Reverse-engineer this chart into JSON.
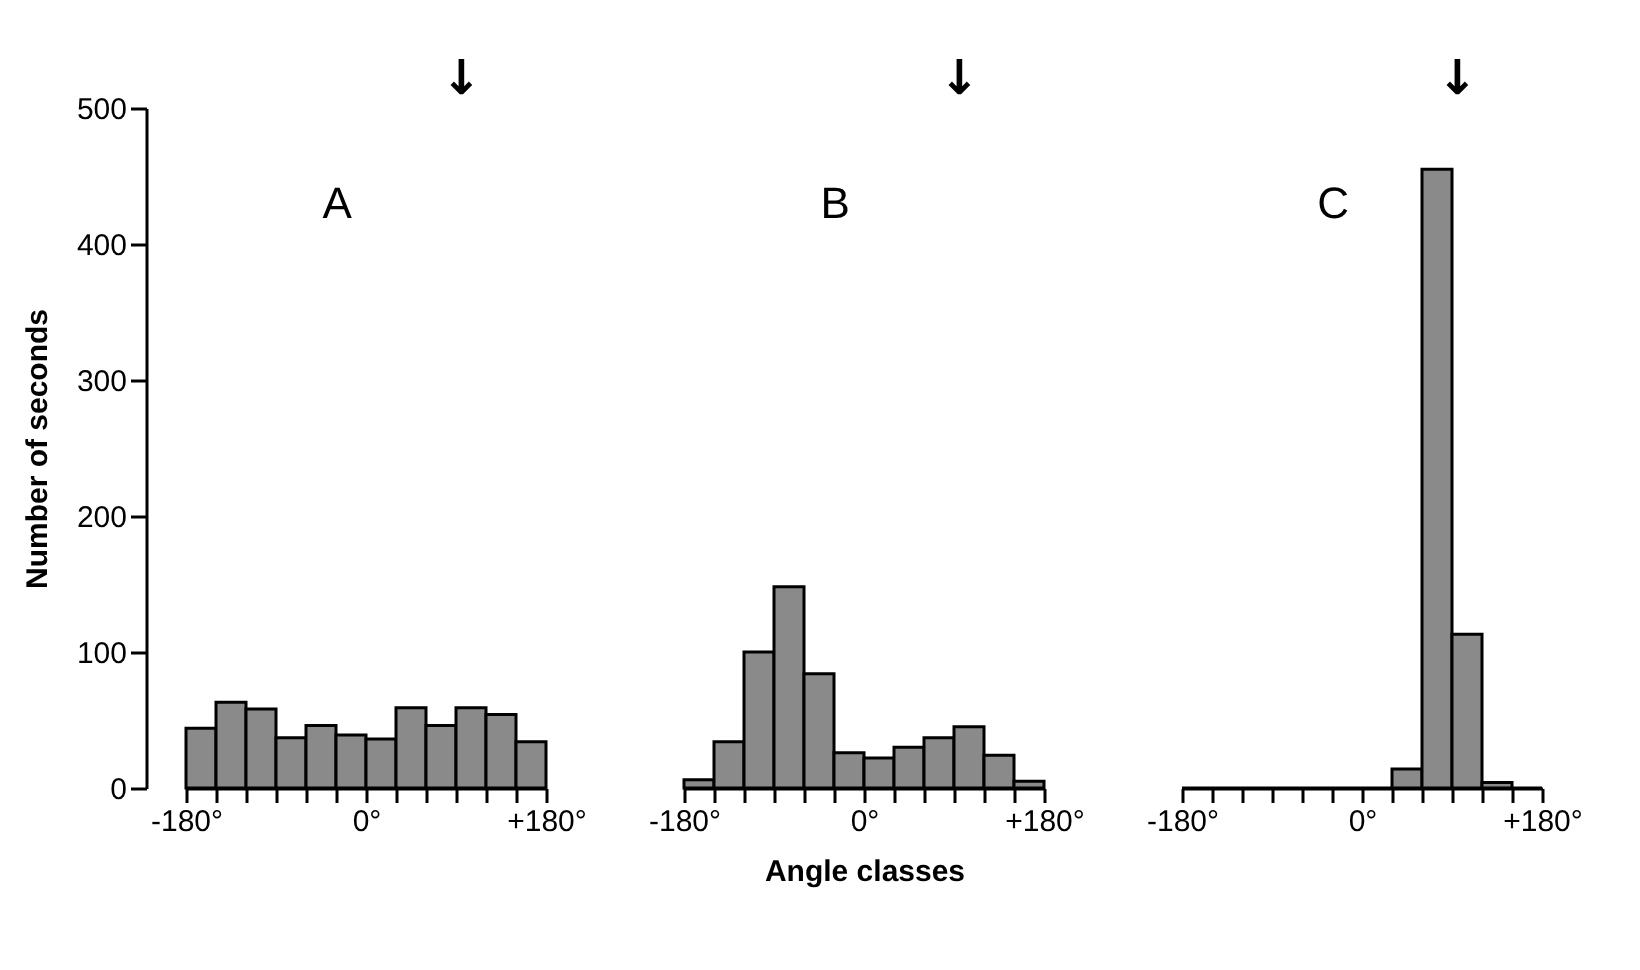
{
  "chart_data": [
    {
      "type": "histogram",
      "title": "A",
      "ylabel": "Number of seconds",
      "color": "#8a8a8a",
      "bins": [
        -180,
        -150,
        -120,
        -90,
        -60,
        -30,
        0,
        30,
        60,
        90,
        120,
        150,
        180
      ],
      "values": [
        44,
        63,
        58,
        37,
        46,
        39,
        36,
        59,
        46,
        59,
        54,
        34
      ],
      "xlim": [
        -180,
        180
      ],
      "ylim": [
        0,
        500
      ],
      "yticks": [
        0,
        100,
        200,
        300,
        400,
        500
      ],
      "xticks": [
        {
          "value": -180,
          "label": "-180°"
        },
        {
          "value": -150,
          "label": null
        },
        {
          "value": -120,
          "label": null
        },
        {
          "value": -90,
          "label": null
        },
        {
          "value": -60,
          "label": null
        },
        {
          "value": -30,
          "label": null
        },
        {
          "value": 0,
          "label": "0°"
        },
        {
          "value": 30,
          "label": null
        },
        {
          "value": 60,
          "label": null
        },
        {
          "value": 90,
          "label": null
        },
        {
          "value": 120,
          "label": null
        },
        {
          "value": 150,
          "label": null
        },
        {
          "value": 180,
          "label": "+180°"
        }
      ],
      "annotations": [
        "↓"
      ],
      "grid": false
    },
    {
      "type": "histogram",
      "title": "B",
      "xlabel": "Angle classes",
      "color": "#8a8a8a",
      "bins": [
        -180,
        -150,
        -120,
        -90,
        -60,
        -30,
        0,
        30,
        60,
        90,
        120,
        150,
        180
      ],
      "values": [
        6,
        34,
        100,
        148,
        84,
        26,
        22,
        30,
        37,
        45,
        24,
        5
      ],
      "xlim": [
        -180,
        180
      ],
      "ylim": [
        0,
        500
      ],
      "tick_labels": "x",
      "xticks": [
        {
          "value": -180,
          "label": "-180°"
        },
        {
          "value": -150,
          "label": null
        },
        {
          "value": -120,
          "label": null
        },
        {
          "value": -90,
          "label": null
        },
        {
          "value": -60,
          "label": null
        },
        {
          "value": -30,
          "label": null
        },
        {
          "value": 0,
          "label": "0°"
        },
        {
          "value": 30,
          "label": null
        },
        {
          "value": 60,
          "label": null
        },
        {
          "value": 90,
          "label": null
        },
        {
          "value": 120,
          "label": null
        },
        {
          "value": 150,
          "label": null
        },
        {
          "value": 180,
          "label": "+180°"
        }
      ],
      "annotations": [
        "↓"
      ],
      "grid": false
    },
    {
      "type": "histogram",
      "title": "C",
      "color": "#8a8a8a",
      "bins": [
        -180,
        -150,
        -120,
        -90,
        -60,
        -30,
        0,
        30,
        60,
        90,
        120,
        150,
        180
      ],
      "values": [
        0,
        0,
        0,
        0,
        0,
        0,
        0,
        14,
        455,
        113,
        4,
        0
      ],
      "xlim": [
        -180,
        180
      ],
      "ylim": [
        0,
        500
      ],
      "tick_labels": "x",
      "xticks": [
        {
          "value": -180,
          "label": "-180°"
        },
        {
          "value": -150,
          "label": null
        },
        {
          "value": -120,
          "label": null
        },
        {
          "value": -90,
          "label": null
        },
        {
          "value": -60,
          "label": null
        },
        {
          "value": -30,
          "label": null
        },
        {
          "value": 0,
          "label": "0°"
        },
        {
          "value": 30,
          "label": null
        },
        {
          "value": 60,
          "label": null
        },
        {
          "value": 90,
          "label": null
        },
        {
          "value": 120,
          "label": null
        },
        {
          "value": 150,
          "label": null
        },
        {
          "value": 180,
          "label": "+180°"
        }
      ],
      "annotations": [
        "↓"
      ],
      "grid": false
    }
  ]
}
